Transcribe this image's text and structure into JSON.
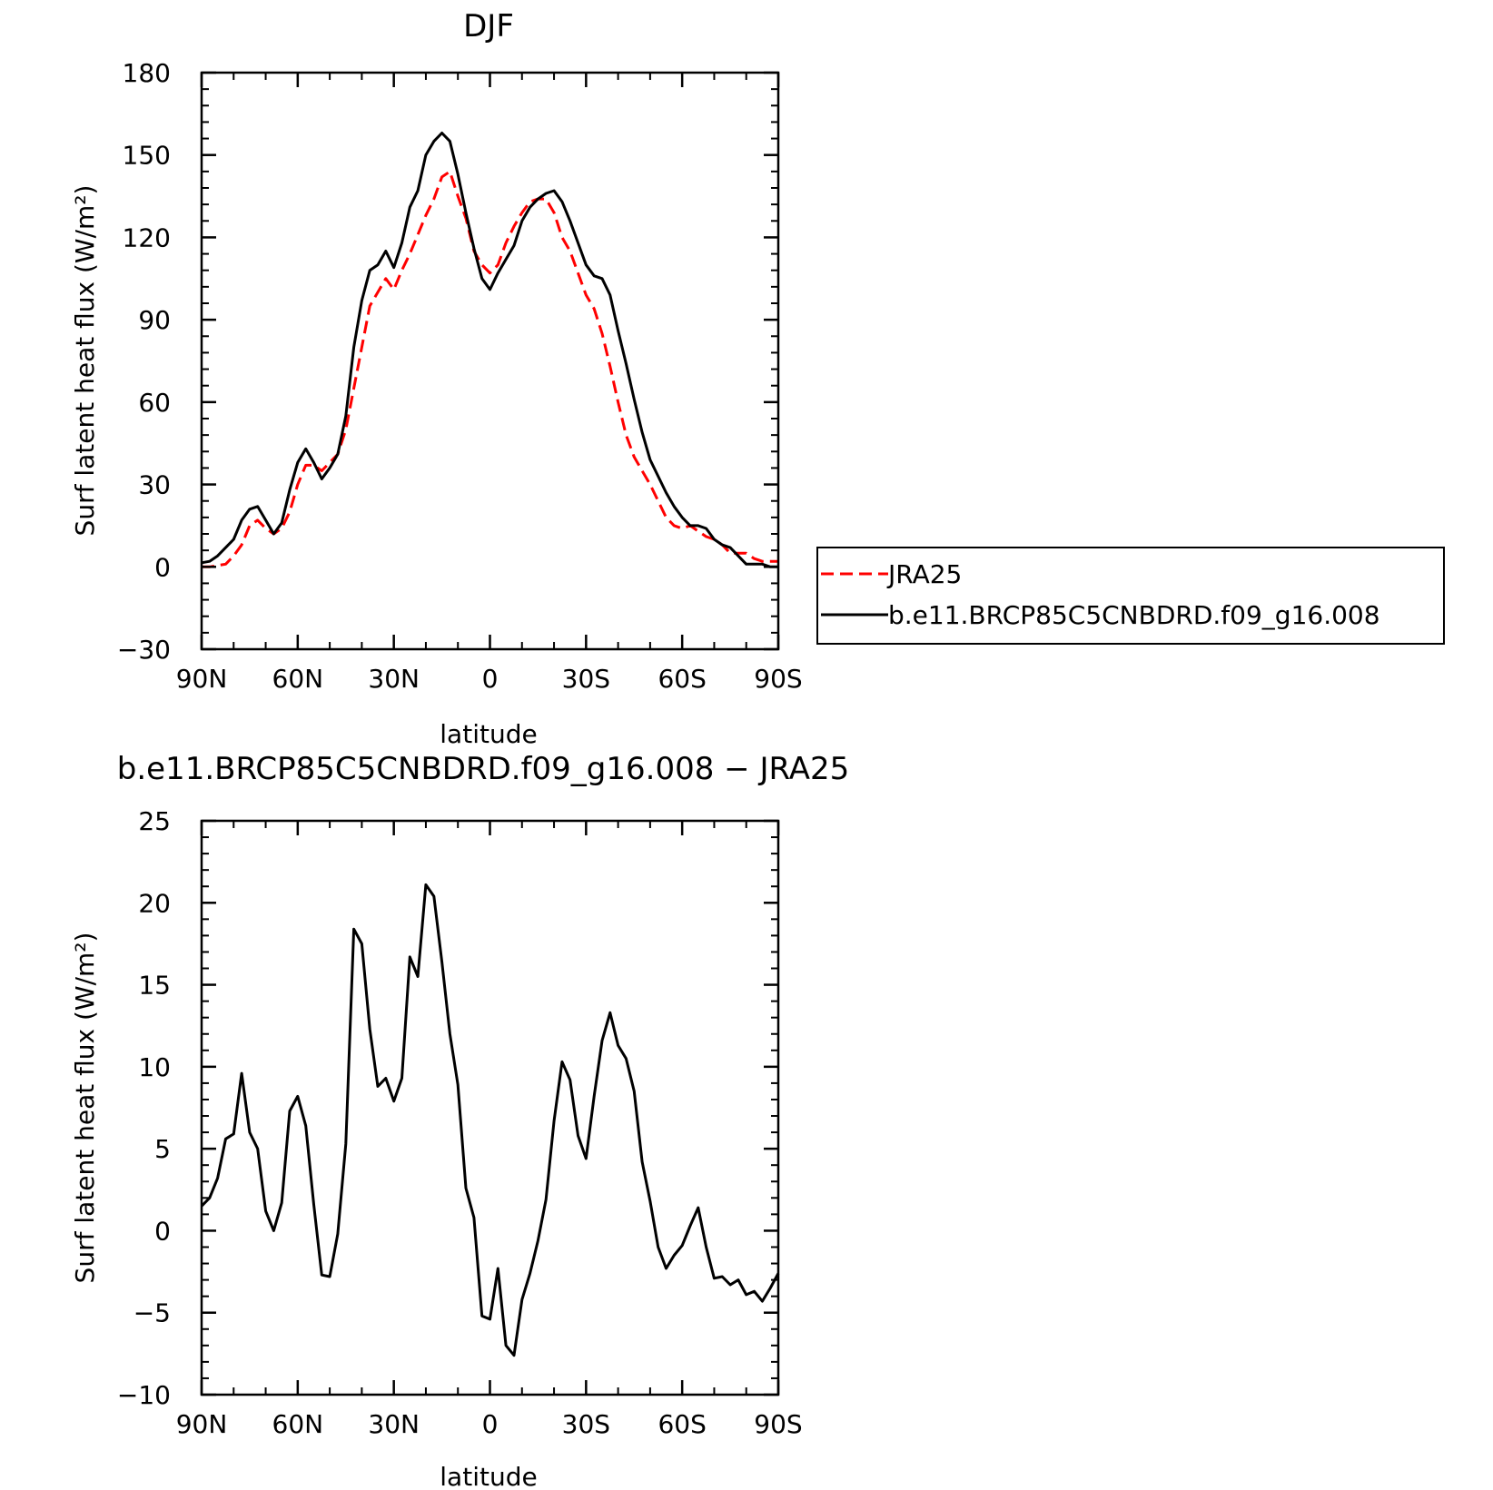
{
  "chart_data": [
    {
      "type": "line",
      "title": "DJF",
      "xlabel": "latitude",
      "ylabel": "Surf latent heat flux (W/m²)",
      "xlim": [
        90,
        -90
      ],
      "ylim": [
        -30,
        180
      ],
      "yticks": [
        -30,
        0,
        30,
        60,
        90,
        120,
        150,
        180
      ],
      "xticks": [
        90,
        60,
        30,
        0,
        -30,
        -60,
        -90
      ],
      "xtick_labels": [
        "90N",
        "60N",
        "30N",
        "0",
        "30S",
        "60S",
        "90S"
      ],
      "legend_position": "right",
      "x": [
        90,
        87.5,
        85,
        82.5,
        80,
        77.5,
        75,
        72.5,
        70,
        67.5,
        65,
        62.5,
        60,
        57.5,
        55,
        52.5,
        50,
        47.5,
        45,
        42.5,
        40,
        37.5,
        35,
        32.5,
        30,
        27.5,
        25,
        22.5,
        20,
        17.5,
        15,
        12.5,
        10,
        7.5,
        5,
        2.5,
        0,
        -2.5,
        -5,
        -7.5,
        -10,
        -12.5,
        -15,
        -17.5,
        -20,
        -22.5,
        -25,
        -27.5,
        -30,
        -32.5,
        -35,
        -37.5,
        -40,
        -42.5,
        -45,
        -47.5,
        -50,
        -52.5,
        -55,
        -57.5,
        -60,
        -62.5,
        -65,
        -67.5,
        -70,
        -72.5,
        -75,
        -77.5,
        -80,
        -82.5,
        -85,
        -87.5,
        -90
      ],
      "series": [
        {
          "name": "JRA25",
          "color": "#ff0000",
          "dash": "dashed",
          "values": [
            0,
            0,
            0.5,
            1,
            4,
            8,
            15,
            17,
            14,
            12,
            14,
            20,
            30,
            37,
            37,
            35,
            38,
            41,
            50,
            65,
            80,
            95,
            100,
            105,
            101,
            108,
            114,
            121,
            128,
            134,
            142,
            144,
            135,
            127,
            115,
            110,
            107,
            110,
            118,
            124,
            129,
            133,
            134,
            134,
            129,
            120,
            115,
            107,
            99,
            94,
            85,
            73,
            60,
            48,
            40,
            35,
            30,
            24,
            18,
            15,
            14,
            15,
            13,
            11,
            10,
            8,
            5,
            5,
            5,
            3,
            2,
            2,
            2
          ]
        },
        {
          "name": "b.e11.BRCP85C5CNBDRD.f09_g16.008",
          "color": "#000000",
          "dash": "solid",
          "values": [
            1.5,
            2,
            4,
            7,
            10,
            17,
            21,
            22,
            17,
            12,
            16,
            28,
            38,
            43,
            38,
            32,
            36,
            41,
            55,
            80,
            97,
            108,
            110,
            115,
            109,
            118,
            131,
            137,
            150,
            155,
            158,
            155,
            143,
            129,
            116,
            105,
            101,
            107,
            112,
            117,
            126,
            131,
            134,
            136,
            137,
            133,
            126,
            118,
            110,
            106,
            105,
            99,
            86,
            74,
            61,
            49,
            39,
            33,
            27,
            22,
            18,
            15,
            15,
            14,
            10,
            8,
            7,
            4,
            1,
            1,
            1,
            0,
            0
          ]
        }
      ]
    },
    {
      "type": "line",
      "title": "b.e11.BRCP85C5CNBDRD.f09_g16.008 − JRA25",
      "xlabel": "latitude",
      "ylabel": "Surf latent heat flux (W/m²)",
      "xlim": [
        90,
        -90
      ],
      "ylim": [
        -10,
        25
      ],
      "yticks": [
        -10,
        -5,
        0,
        5,
        10,
        15,
        20,
        25
      ],
      "xticks": [
        90,
        60,
        30,
        0,
        -30,
        -60,
        -90
      ],
      "xtick_labels": [
        "90N",
        "60N",
        "30N",
        "0",
        "30S",
        "60S",
        "90S"
      ],
      "x": [
        90,
        87.5,
        85,
        82.5,
        80,
        77.5,
        75,
        72.5,
        70,
        67.5,
        65,
        62.5,
        60,
        57.5,
        55,
        52.5,
        50,
        47.5,
        45,
        42.5,
        40,
        37.5,
        35,
        32.5,
        30,
        27.5,
        25,
        22.5,
        20,
        17.5,
        15,
        12.5,
        10,
        7.5,
        5,
        2.5,
        0,
        -2.5,
        -5,
        -7.5,
        -10,
        -12.5,
        -15,
        -17.5,
        -20,
        -22.5,
        -25,
        -27.5,
        -30,
        -32.5,
        -35,
        -37.5,
        -40,
        -42.5,
        -45,
        -47.5,
        -50,
        -52.5,
        -55,
        -57.5,
        -60,
        -62.5,
        -65,
        -67.5,
        -70,
        -72.5,
        -75,
        -77.5,
        -80,
        -82.5,
        -85,
        -87.5,
        -90
      ],
      "series": [
        {
          "color": "#000000",
          "dash": "solid",
          "values": [
            1.5,
            2,
            3.2,
            5.6,
            5.9,
            9.6,
            6,
            5,
            1.2,
            0,
            1.7,
            7.3,
            8.2,
            6.4,
            1.6,
            -2.7,
            -2.8,
            -0.2,
            5.3,
            18.4,
            17.5,
            12.3,
            8.8,
            9.3,
            7.9,
            9.3,
            16.7,
            15.5,
            21.1,
            20.4,
            16.4,
            12,
            8.9,
            2.6,
            0.8,
            -5.2,
            -5.4,
            -2.3,
            -7,
            -7.6,
            -4.2,
            -2.6,
            -0.6,
            1.9,
            6.7,
            10.3,
            9.2,
            5.8,
            4.4,
            8.2,
            11.6,
            13.3,
            11.3,
            10.5,
            8.5,
            4.2,
            1.8,
            -1,
            -2.3,
            -1.5,
            -0.9,
            0.3,
            1.4,
            -1,
            -2.9,
            -2.8,
            -3.3,
            -3,
            -3.9,
            -3.7,
            -4.3,
            -3.5,
            -2.6
          ]
        }
      ]
    }
  ]
}
